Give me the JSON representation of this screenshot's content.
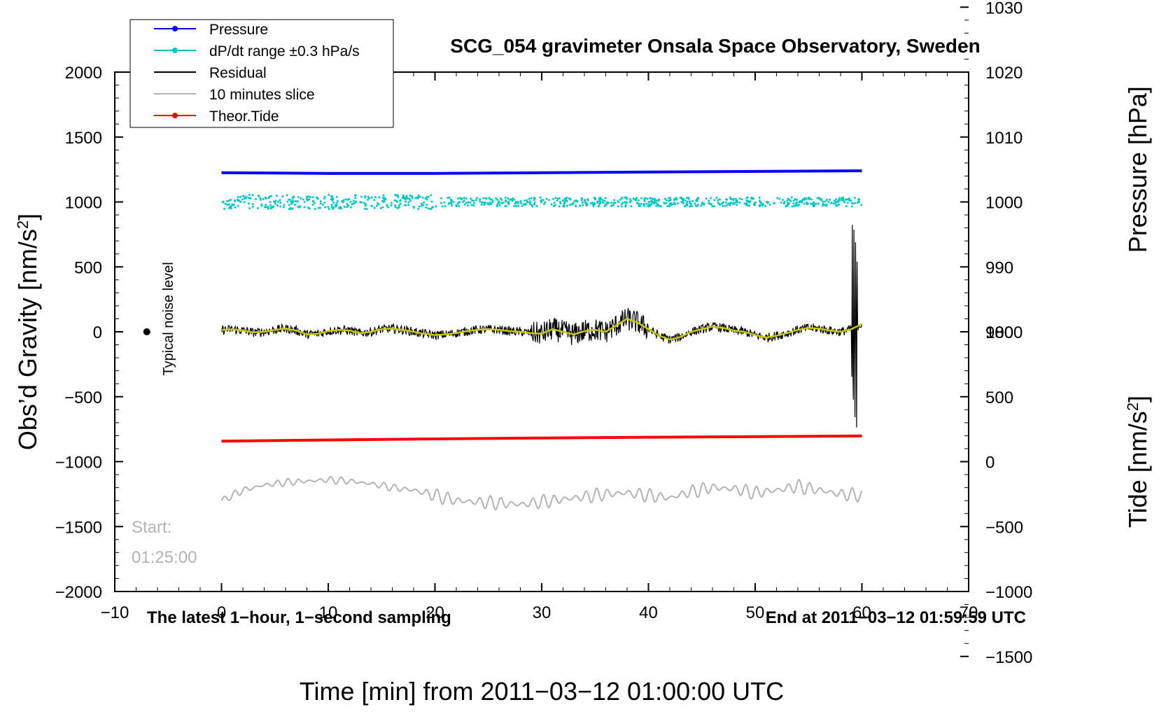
{
  "chart_data": {
    "type": "line",
    "title": "SCG_054 gravimeter Onsala Space Observatory, Sweden",
    "xlabel": "Time [min] from 2011−03−12 01:00:00 UTC",
    "xlim": [
      -10,
      70
    ],
    "x_ticks": [
      -10,
      0,
      10,
      20,
      30,
      40,
      50,
      60,
      70
    ],
    "x_tick_labels": [
      "−10",
      "0",
      "10",
      "20",
      "30",
      "40",
      "50",
      "60",
      "70"
    ],
    "y_left": {
      "label_base": "Obs’d Gravity [nm/s",
      "label_sup": "2",
      "label_end": "]",
      "lim": [
        -2000,
        2000
      ],
      "ticks": [
        -2000,
        -1500,
        -1000,
        -500,
        0,
        500,
        1000,
        1500,
        2000
      ],
      "tick_labels": [
        "−2000",
        "−1500",
        "−1000",
        "−500",
        "0",
        "500",
        "1000",
        "1500",
        "2000"
      ]
    },
    "y_right_pressure": {
      "label": "Pressure [hPa]",
      "ticks": [
        980,
        990,
        1000,
        1010,
        1020,
        1030
      ],
      "tick_labels": [
        "980",
        "990",
        "1000",
        "1010",
        "1020",
        "1030"
      ],
      "scale_gravity_per_unit": 50,
      "offset_value": 1000,
      "offset_gravity": 1000
    },
    "y_right_tide": {
      "label_base": "Tide [nm/s",
      "label_sup": "2",
      "label_end": "]",
      "ticks": [
        -1500,
        -1000,
        -500,
        0,
        500,
        1000
      ],
      "tick_labels": [
        "−1500",
        "−1000",
        "−500",
        "0",
        "500",
        "1000"
      ],
      "scale_gravity_per_unit": 1,
      "offset_value": 0,
      "offset_gravity": -1000
    },
    "legend": {
      "placement": "top-left",
      "entries": [
        {
          "label": "Pressure",
          "color": "#0000ff",
          "marker": true
        },
        {
          "label": "dP/dt range ±0.3 hPa/s",
          "color": "#00c8c8",
          "marker": true
        },
        {
          "label": "Residual",
          "color": "#000000",
          "marker": false
        },
        {
          "label": "10 minutes slice",
          "color": "#b3b3b3",
          "marker": false
        },
        {
          "label": "Theor.Tide",
          "color": "#ff0000",
          "marker": true
        }
      ]
    },
    "series": [
      {
        "name": "Pressure",
        "color": "#0000ff",
        "x": [
          0,
          10,
          20,
          30,
          40,
          50,
          60
        ],
        "y_hPa": [
          1004.5,
          1004.4,
          1004.4,
          1004.5,
          1004.6,
          1004.7,
          1004.8
        ]
      },
      {
        "name": "Theor.Tide",
        "color": "#ff0000",
        "x": [
          0,
          10,
          20,
          30,
          40,
          50,
          60
        ],
        "y": [
          158,
          167,
          175,
          182,
          188,
          193,
          198
        ]
      },
      {
        "name": "Residual",
        "color": "#000000",
        "smooth_color": "#c8c800",
        "x": [
          0,
          1,
          2,
          3,
          4,
          5,
          6,
          7,
          8,
          9,
          10,
          11,
          12,
          13,
          14,
          15,
          16,
          17,
          18,
          19,
          20,
          21,
          22,
          23,
          24,
          25,
          26,
          27,
          28,
          29,
          30,
          31,
          32,
          33,
          34,
          35,
          36,
          37,
          38,
          39,
          40,
          41,
          42,
          43,
          44,
          45,
          46,
          47,
          48,
          49,
          50,
          51,
          52,
          53,
          54,
          55,
          56,
          57,
          58,
          59,
          60
        ],
        "y": [
          15,
          20,
          10,
          -5,
          0,
          15,
          25,
          10,
          -20,
          -15,
          5,
          15,
          10,
          -10,
          0,
          20,
          25,
          15,
          0,
          -15,
          -25,
          -20,
          -10,
          5,
          15,
          20,
          15,
          5,
          0,
          -10,
          -15,
          20,
          0,
          -20,
          5,
          15,
          0,
          50,
          100,
          70,
          20,
          -30,
          -60,
          -40,
          0,
          20,
          40,
          30,
          10,
          0,
          -25,
          -45,
          -30,
          -10,
          15,
          30,
          25,
          10,
          0,
          20,
          60
        ]
      },
      {
        "name": "10 minutes slice",
        "color": "#b3b3b3",
        "x": [
          0,
          2,
          4,
          6,
          8,
          10,
          12,
          14,
          16,
          18,
          20,
          22,
          24,
          26,
          28,
          30,
          32,
          34,
          36,
          38,
          40,
          42,
          44,
          46,
          48,
          50,
          52,
          54,
          56,
          58,
          60
        ],
        "y": [
          -1300,
          -1220,
          -1180,
          -1160,
          -1150,
          -1140,
          -1150,
          -1170,
          -1200,
          -1220,
          -1260,
          -1300,
          -1310,
          -1320,
          -1330,
          -1310,
          -1290,
          -1270,
          -1250,
          -1240,
          -1260,
          -1280,
          -1230,
          -1200,
          -1210,
          -1240,
          -1220,
          -1190,
          -1220,
          -1250,
          -1260
        ]
      }
    ],
    "noise_level": {
      "label": "Typical noise level",
      "x": -7,
      "y": 0,
      "err": 20
    },
    "annotations": {
      "bottom_left": "The latest 1−hour, 1−second sampling",
      "bottom_right": "End at 2011−03−12 01:59:59 UTC",
      "start_label": "Start:",
      "start_time": "01:25:00"
    },
    "grid": false
  }
}
